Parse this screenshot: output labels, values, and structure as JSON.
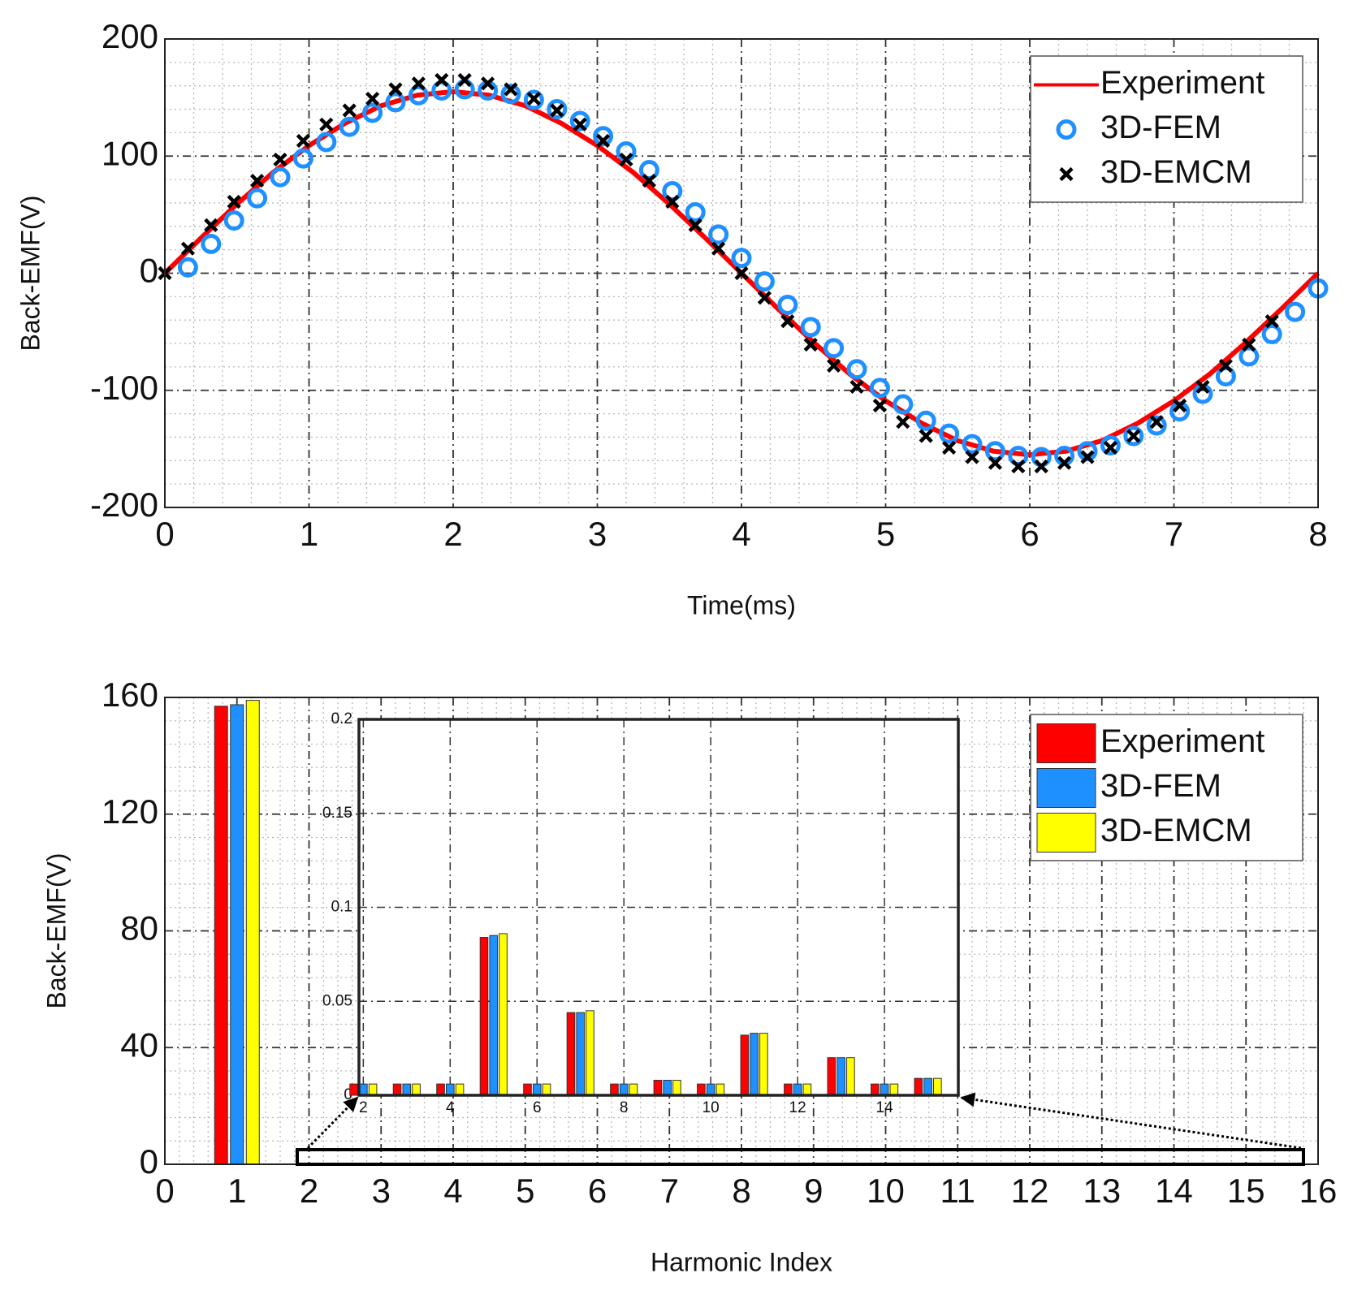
{
  "chart_data": [
    {
      "type": "line",
      "xlabel": "Time(ms)",
      "ylabel": "Back-EMF(V)",
      "xlim": [
        0,
        8
      ],
      "xticks": [
        0,
        1,
        2,
        3,
        4,
        5,
        6,
        7,
        8
      ],
      "ylim": [
        -200,
        200
      ],
      "yticks": [
        -200,
        -100,
        0,
        100,
        200
      ],
      "grid": true,
      "minor_grid": true,
      "legend": "upper right",
      "series": [
        {
          "name": "Experiment",
          "style": "line",
          "color": "#ff0000",
          "x": [
            0,
            0.25,
            0.5,
            0.75,
            1,
            1.25,
            1.5,
            1.75,
            2,
            2.25,
            2.5,
            2.75,
            3,
            3.25,
            3.5,
            3.75,
            4,
            4.25,
            4.5,
            4.75,
            5,
            5.25,
            5.5,
            5.75,
            6,
            6.25,
            6.5,
            6.75,
            7,
            7.25,
            7.5,
            7.75,
            8
          ],
          "values": [
            0,
            30,
            59,
            86,
            109,
            128,
            143,
            152,
            155,
            152,
            143,
            128,
            109,
            86,
            59,
            30,
            0,
            -30,
            -59,
            -86,
            -109,
            -128,
            -143,
            -152,
            -155,
            -152,
            -143,
            -128,
            -109,
            -86,
            -59,
            -30,
            0
          ]
        },
        {
          "name": "3D-FEM",
          "style": "circle",
          "color": "#1e90ff",
          "x": [
            0.16,
            0.32,
            0.48,
            0.64,
            0.8,
            0.96,
            1.12,
            1.28,
            1.44,
            1.6,
            1.76,
            1.92,
            2.08,
            2.24,
            2.4,
            2.56,
            2.72,
            2.88,
            3.04,
            3.2,
            3.36,
            3.52,
            3.68,
            3.84,
            4,
            4.16,
            4.32,
            4.48,
            4.64,
            4.8,
            4.96,
            5.12,
            5.28,
            5.44,
            5.6,
            5.76,
            5.92,
            6.08,
            6.24,
            6.4,
            6.56,
            6.72,
            6.88,
            7.04,
            7.2,
            7.36,
            7.52,
            7.68,
            7.84,
            8
          ],
          "values": [
            5,
            25,
            45,
            64,
            82,
            98,
            112,
            125,
            137,
            146,
            152,
            156,
            157,
            156,
            153,
            148,
            140,
            130,
            117,
            104,
            88,
            70,
            52,
            33,
            13,
            -7,
            -27,
            -46,
            -64,
            -82,
            -98,
            -112,
            -126,
            -137,
            -146,
            -152,
            -156,
            -157,
            -156,
            -152,
            -147,
            -139,
            -130,
            -118,
            -103,
            -88,
            -71,
            -52,
            -33,
            -13
          ]
        },
        {
          "name": "3D-EMCM",
          "style": "cross",
          "color": "#000000",
          "x": [
            0,
            0.16,
            0.32,
            0.48,
            0.64,
            0.8,
            0.96,
            1.12,
            1.28,
            1.44,
            1.6,
            1.76,
            1.92,
            2.08,
            2.24,
            2.4,
            2.56,
            2.72,
            2.88,
            3.04,
            3.2,
            3.36,
            3.52,
            3.68,
            3.84,
            4,
            4.16,
            4.32,
            4.48,
            4.64,
            4.8,
            4.96,
            5.12,
            5.28,
            5.44,
            5.6,
            5.76,
            5.92,
            6.08,
            6.24,
            6.4,
            6.56,
            6.72,
            6.88,
            7.04,
            7.2,
            7.36,
            7.52,
            7.68
          ],
          "values": [
            0,
            21,
            41,
            61,
            79,
            97,
            113,
            127,
            139,
            149,
            157,
            162,
            165,
            165,
            162,
            157,
            149,
            139,
            127,
            113,
            97,
            79,
            61,
            41,
            21,
            0,
            -21,
            -41,
            -61,
            -79,
            -97,
            -113,
            -127,
            -139,
            -149,
            -157,
            -162,
            -165,
            -165,
            -162,
            -157,
            -149,
            -139,
            -127,
            -113,
            -97,
            -79,
            -61,
            -41
          ]
        }
      ]
    },
    {
      "type": "bar",
      "xlabel": "Harmonic Index",
      "ylabel": "Back-EMF(V)",
      "xlim": [
        0,
        16
      ],
      "xticks": [
        0,
        1,
        2,
        3,
        4,
        5,
        6,
        7,
        8,
        9,
        10,
        11,
        12,
        13,
        14,
        15,
        16
      ],
      "ylim": [
        0,
        160
      ],
      "yticks": [
        0,
        40,
        80,
        120,
        160
      ],
      "grid": true,
      "minor_grid": true,
      "legend": "upper right",
      "x": [
        1
      ],
      "series": [
        {
          "name": "Experiment",
          "color": "#ff0000",
          "values": [
            157
          ]
        },
        {
          "name": "3D-FEM",
          "color": "#1e90ff",
          "values": [
            157.5
          ]
        },
        {
          "name": "3D-EMCM",
          "color": "#ffff00",
          "values": [
            159
          ]
        }
      ]
    },
    {
      "type": "bar",
      "xlim": [
        1.9,
        15.7
      ],
      "xticks": [
        2,
        4,
        6,
        8,
        10,
        12,
        14
      ],
      "ylim": [
        0,
        0.2
      ],
      "yticks": [
        0,
        0.05,
        0.1,
        0.15,
        0.2
      ],
      "grid": true,
      "minor_grid": false,
      "x": [
        2,
        3,
        4,
        5,
        6,
        7,
        8,
        9,
        10,
        11,
        12,
        13,
        14,
        15
      ],
      "series": [
        {
          "color": "#ff0000",
          "values": [
            0.006,
            0.006,
            0.006,
            0.084,
            0.006,
            0.044,
            0.006,
            0.008,
            0.006,
            0.032,
            0.006,
            0.02,
            0.006,
            0.009
          ]
        },
        {
          "color": "#1e90ff",
          "values": [
            0.006,
            0.006,
            0.006,
            0.085,
            0.006,
            0.044,
            0.006,
            0.008,
            0.006,
            0.033,
            0.006,
            0.02,
            0.006,
            0.009
          ]
        },
        {
          "color": "#ffff00",
          "values": [
            0.006,
            0.006,
            0.006,
            0.086,
            0.006,
            0.045,
            0.006,
            0.008,
            0.006,
            0.033,
            0.006,
            0.02,
            0.006,
            0.009
          ]
        }
      ]
    }
  ]
}
